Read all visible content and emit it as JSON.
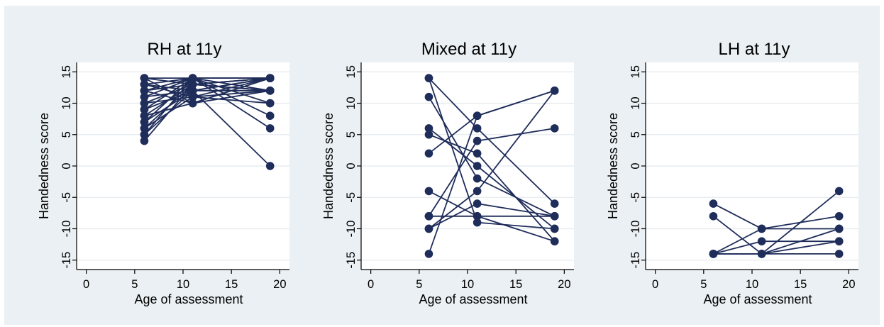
{
  "colors": {
    "frame_bg": "#eaf0f3",
    "series": "#1f2d5a"
  },
  "chart_data": [
    {
      "type": "line",
      "title": "RH at 11y",
      "xlabel": "Age of assessment",
      "ylabel": "Handedness score",
      "xlim": [
        0,
        20
      ],
      "ylim": [
        -15,
        15
      ],
      "xticks": [
        0,
        5,
        10,
        15,
        20
      ],
      "yticks": [
        15,
        10,
        5,
        0,
        -5,
        -10,
        -15
      ],
      "grid": true,
      "series": [
        {
          "x": [
            6,
            11,
            19
          ],
          "y": [
            14,
            14,
            14
          ]
        },
        {
          "x": [
            6,
            11,
            19
          ],
          "y": [
            14,
            13,
            12
          ]
        },
        {
          "x": [
            6,
            11,
            19
          ],
          "y": [
            13,
            14,
            14
          ]
        },
        {
          "x": [
            6,
            11,
            19
          ],
          "y": [
            13,
            12,
            14
          ]
        },
        {
          "x": [
            6,
            11,
            19
          ],
          "y": [
            12,
            14,
            14
          ]
        },
        {
          "x": [
            6,
            11,
            19
          ],
          "y": [
            12,
            13,
            12
          ]
        },
        {
          "x": [
            6,
            11,
            19
          ],
          "y": [
            11,
            14,
            10
          ]
        },
        {
          "x": [
            6,
            11,
            19
          ],
          "y": [
            11,
            12,
            14
          ]
        },
        {
          "x": [
            6,
            11,
            19
          ],
          "y": [
            10,
            13,
            14
          ]
        },
        {
          "x": [
            6,
            11,
            19
          ],
          "y": [
            10,
            11,
            12
          ]
        },
        {
          "x": [
            6,
            11,
            19
          ],
          "y": [
            9,
            14,
            8
          ]
        },
        {
          "x": [
            6,
            11,
            19
          ],
          "y": [
            9,
            12,
            14
          ]
        },
        {
          "x": [
            6,
            11,
            19
          ],
          "y": [
            8,
            13,
            12
          ]
        },
        {
          "x": [
            6,
            11,
            19
          ],
          "y": [
            8,
            10,
            14
          ]
        },
        {
          "x": [
            6,
            11,
            19
          ],
          "y": [
            7,
            14,
            6
          ]
        },
        {
          "x": [
            6,
            11,
            19
          ],
          "y": [
            7,
            12,
            12
          ]
        },
        {
          "x": [
            6,
            11,
            19
          ],
          "y": [
            6,
            13,
            14
          ]
        },
        {
          "x": [
            6,
            11,
            19
          ],
          "y": [
            6,
            11,
            10
          ]
        },
        {
          "x": [
            6,
            11,
            19
          ],
          "y": [
            5,
            14,
            12
          ]
        },
        {
          "x": [
            6,
            11,
            19
          ],
          "y": [
            5,
            12,
            0
          ]
        },
        {
          "x": [
            6,
            11,
            19
          ],
          "y": [
            4,
            13,
            14
          ]
        },
        {
          "x": [
            6,
            11,
            19
          ],
          "y": [
            14,
            10,
            12
          ]
        },
        {
          "x": [
            6,
            11,
            19
          ],
          "y": [
            13,
            11,
            14
          ]
        },
        {
          "x": [
            6,
            11,
            19
          ],
          "y": [
            12,
            10,
            14
          ]
        }
      ]
    },
    {
      "type": "line",
      "title": "Mixed at 11y",
      "xlabel": "Age of assessment",
      "ylabel": "Handedness score",
      "xlim": [
        0,
        20
      ],
      "ylim": [
        -15,
        15
      ],
      "xticks": [
        0,
        5,
        10,
        15,
        20
      ],
      "yticks": [
        15,
        10,
        5,
        0,
        -5,
        -10,
        -15
      ],
      "grid": true,
      "series": [
        {
          "x": [
            6,
            11,
            19
          ],
          "y": [
            14,
            6,
            -6
          ]
        },
        {
          "x": [
            6,
            11,
            19
          ],
          "y": [
            14,
            -9,
            -10
          ]
        },
        {
          "x": [
            6,
            11,
            19
          ],
          "y": [
            11,
            -2,
            -8
          ]
        },
        {
          "x": [
            6,
            11,
            19
          ],
          "y": [
            6,
            0,
            -10
          ]
        },
        {
          "x": [
            6,
            11,
            19
          ],
          "y": [
            5,
            2,
            -12
          ]
        },
        {
          "x": [
            6,
            11,
            19
          ],
          "y": [
            2,
            8,
            12
          ]
        },
        {
          "x": [
            6,
            11,
            19
          ],
          "y": [
            -4,
            -8,
            -12
          ]
        },
        {
          "x": [
            6,
            11,
            19
          ],
          "y": [
            -8,
            -8,
            -8
          ]
        },
        {
          "x": [
            6,
            11,
            19
          ],
          "y": [
            -8,
            4,
            6
          ]
        },
        {
          "x": [
            6,
            11,
            19
          ],
          "y": [
            -10,
            -4,
            12
          ]
        },
        {
          "x": [
            6,
            11,
            19
          ],
          "y": [
            -14,
            8,
            12
          ]
        },
        {
          "x": [
            6,
            11,
            19
          ],
          "y": [
            -10,
            -6,
            -8
          ]
        }
      ]
    },
    {
      "type": "line",
      "title": "LH at 11y",
      "xlabel": "Age of assessment",
      "ylabel": "Handedness score",
      "xlim": [
        0,
        20
      ],
      "ylim": [
        -15,
        15
      ],
      "xticks": [
        0,
        5,
        10,
        15,
        20
      ],
      "yticks": [
        15,
        10,
        5,
        0,
        -5,
        -10,
        -15
      ],
      "grid": true,
      "series": [
        {
          "x": [
            6,
            11,
            19
          ],
          "y": [
            -6,
            -10,
            -8
          ]
        },
        {
          "x": [
            6,
            11,
            19
          ],
          "y": [
            -8,
            -14,
            -4
          ]
        },
        {
          "x": [
            6,
            11,
            19
          ],
          "y": [
            -14,
            -10,
            -10
          ]
        },
        {
          "x": [
            6,
            11,
            19
          ],
          "y": [
            -14,
            -14,
            -14
          ]
        },
        {
          "x": [
            6,
            11,
            19
          ],
          "y": [
            -14,
            -12,
            -12
          ]
        },
        {
          "x": [
            6,
            11,
            19
          ],
          "y": [
            -14,
            -14,
            -12
          ]
        },
        {
          "x": [
            6,
            11,
            19
          ],
          "y": [
            -14,
            -14,
            -10
          ]
        }
      ]
    }
  ]
}
